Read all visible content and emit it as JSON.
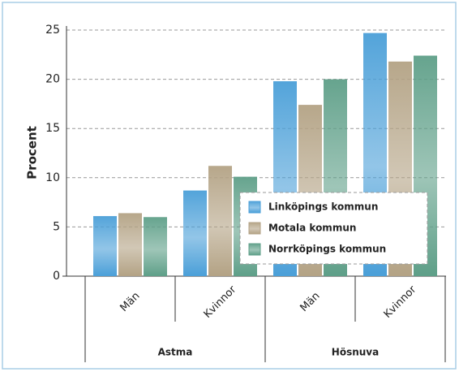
{
  "chart_data": {
    "type": "bar",
    "categories": [
      "Män",
      "Kvinnor",
      "Män",
      "Kvinnor"
    ],
    "group_labels": [
      "Astma",
      "Hösnuva"
    ],
    "y_label": "Procent",
    "series": [
      {
        "name": "Linköpings kommun",
        "color": "#4a9fd8",
        "values": [
          6.1,
          8.7,
          19.8,
          24.7
        ]
      },
      {
        "name": "Motala kommun",
        "color": "#b3a284",
        "values": [
          6.4,
          11.2,
          17.4,
          21.8
        ]
      },
      {
        "name": "Norrköpings kommun",
        "color": "#5e9f88",
        "values": [
          6.0,
          10.1,
          20.0,
          22.4
        ]
      }
    ],
    "ylim": [
      0,
      25
    ],
    "yticks": [
      0,
      5,
      10,
      15,
      20,
      25
    ],
    "grid": true
  }
}
